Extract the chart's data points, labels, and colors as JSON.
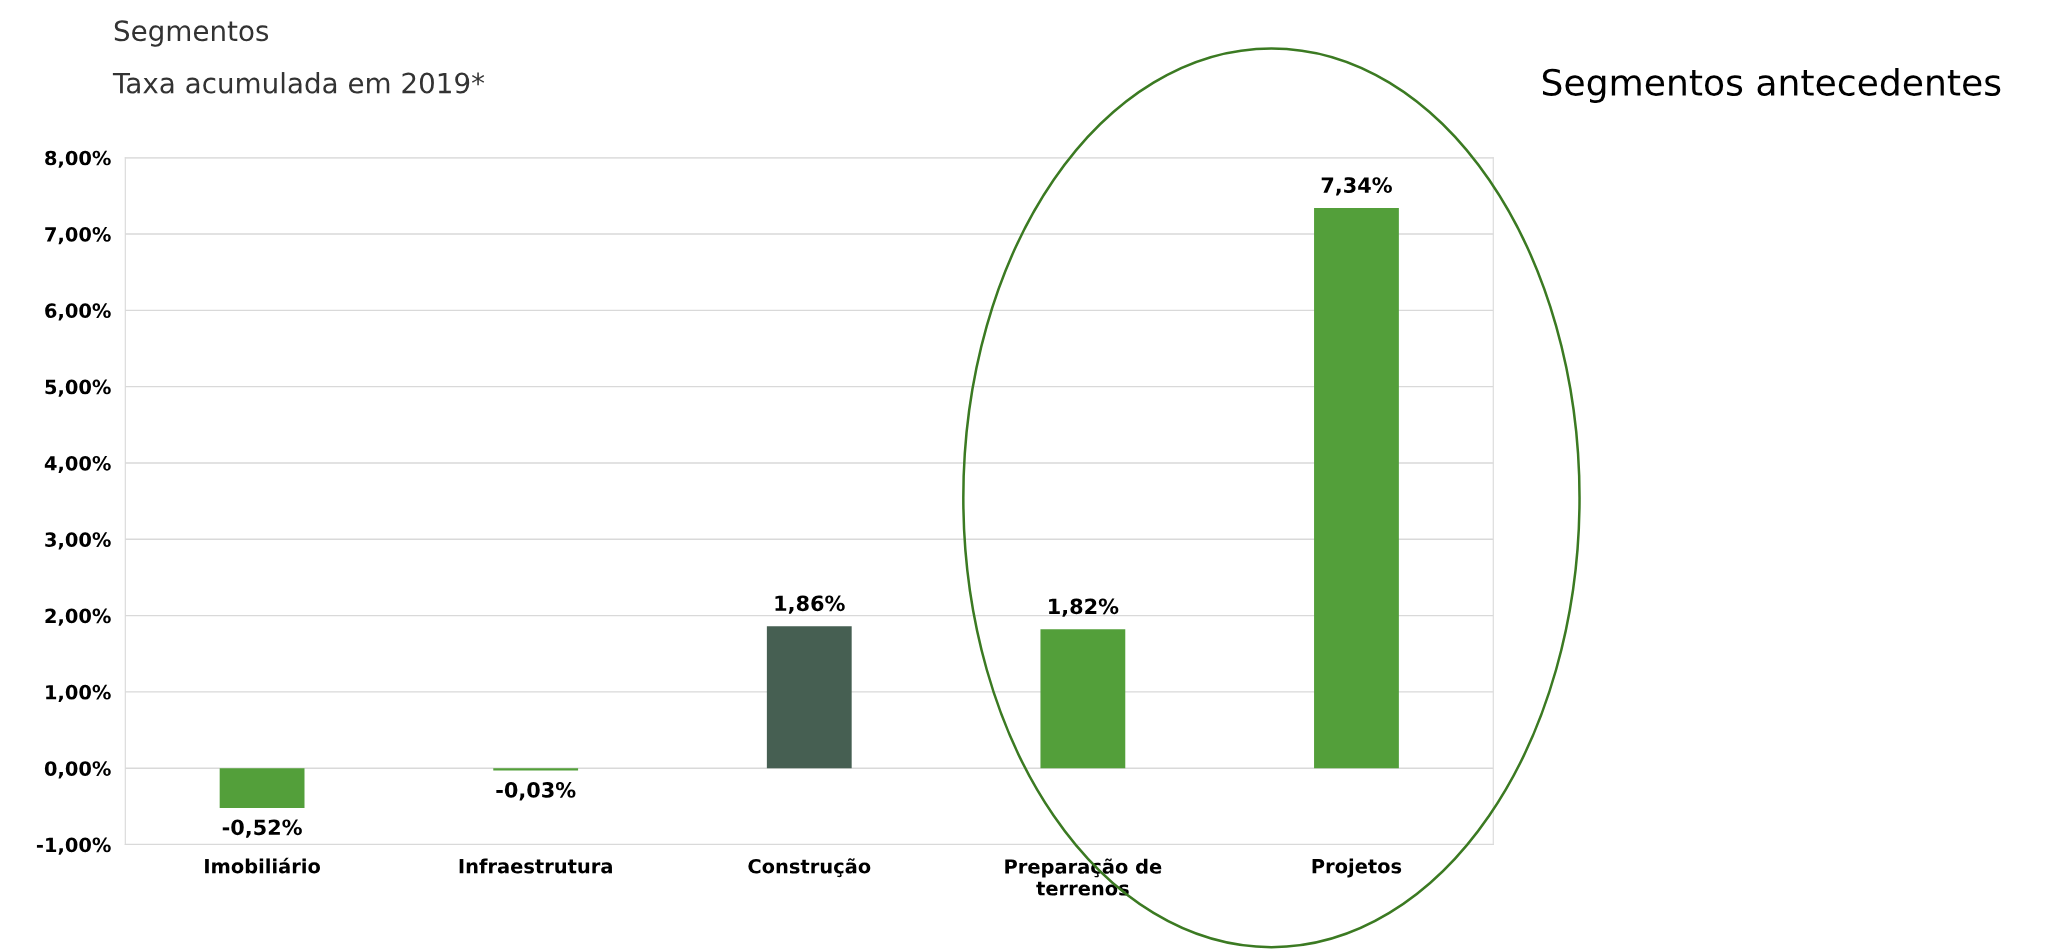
{
  "chart_data": {
    "type": "bar",
    "title": "Segmentos",
    "subtitle": "Taxa acumulada em 2019*",
    "annotations": [
      "Segmentos antecedentes"
    ],
    "categories": [
      "Imobiliário",
      "Infraestrutura",
      "Construção",
      "Preparação de\nterrenos",
      "Projetos"
    ],
    "values": [
      -0.52,
      -0.03,
      1.86,
      1.82,
      7.34
    ],
    "value_labels": [
      "-0,52%",
      "-0,03%",
      "1,86%",
      "1,82%",
      "7,34%"
    ],
    "colors": [
      "#539f3a",
      "#539f3a",
      "#465f52",
      "#539f3a",
      "#539f3a"
    ],
    "ylim": [
      -1,
      8
    ],
    "yticks": [
      {
        "value": -1,
        "label": "-1,00%"
      },
      {
        "value": 0,
        "label": "0,00%"
      },
      {
        "value": 1,
        "label": "1,00%"
      },
      {
        "value": 2,
        "label": "2,00%"
      },
      {
        "value": 3,
        "label": "3,00%"
      },
      {
        "value": 4,
        "label": "4,00%"
      },
      {
        "value": 5,
        "label": "5,00%"
      },
      {
        "value": 6,
        "label": "6,00%"
      },
      {
        "value": 7,
        "label": "7,00%"
      },
      {
        "value": 8,
        "label": "8,00%"
      }
    ],
    "grid": "y",
    "legend": false
  }
}
